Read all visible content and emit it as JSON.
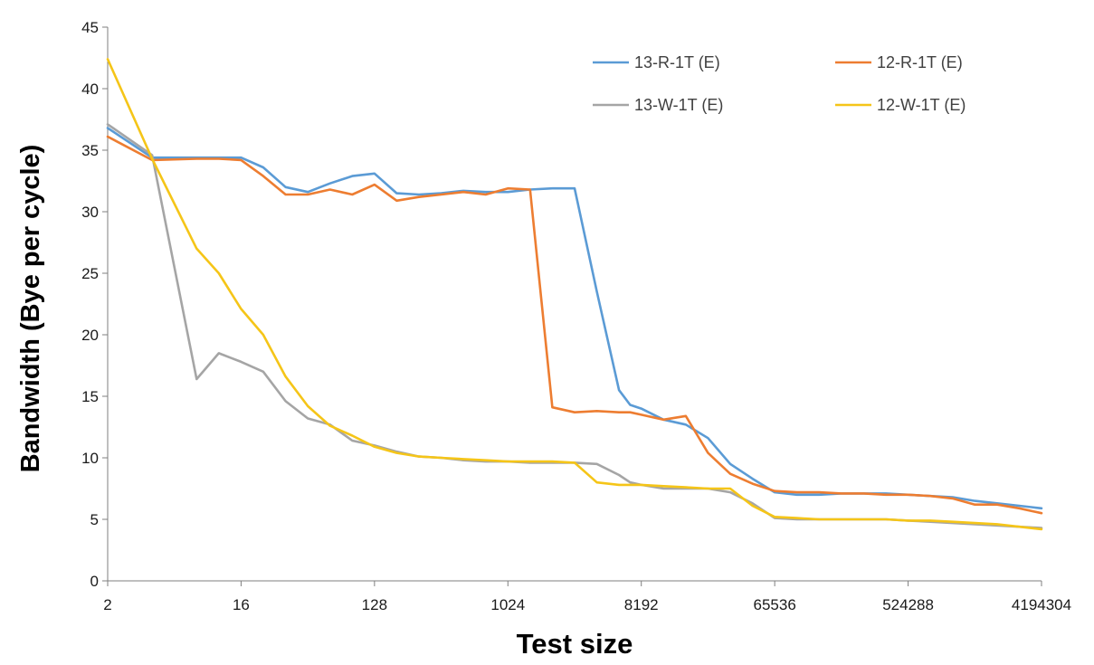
{
  "chart_data": {
    "type": "line",
    "title": "",
    "xlabel": "Test size",
    "ylabel": "Bandwidth (Bye per cycle)",
    "x_scale": "log2",
    "xlim": [
      2,
      4194304
    ],
    "ylim": [
      0,
      45
    ],
    "x_tick_labels": [
      "2",
      "16",
      "128",
      "1024",
      "8192",
      "65536",
      "524288",
      "4194304"
    ],
    "y_tick_labels": [
      "0",
      "5",
      "10",
      "15",
      "20",
      "25",
      "30",
      "35",
      "40",
      "45"
    ],
    "grid": false,
    "legend_position": "top-right",
    "x": [
      2,
      4,
      8,
      11.3,
      16,
      22.6,
      32,
      45.3,
      64,
      90.5,
      128,
      181,
      256,
      362,
      512,
      724,
      1024,
      1448,
      2048,
      2896,
      4096,
      5793,
      6889,
      8192,
      11585,
      16384,
      23170,
      32768,
      46341,
      65536,
      92682,
      131072,
      185364,
      262144,
      370728,
      524288,
      741455,
      1048576,
      1482910,
      2097152,
      2965821,
      4194304
    ],
    "series": [
      {
        "name": "13-R-1T (E)",
        "color": "#5b9bd5",
        "values": [
          36.8,
          34.4,
          34.4,
          34.4,
          34.4,
          33.6,
          32.0,
          31.6,
          32.3,
          32.9,
          33.1,
          31.5,
          31.4,
          31.5,
          31.7,
          31.6,
          31.6,
          31.8,
          31.9,
          31.9,
          23.5,
          15.5,
          14.3,
          14.0,
          13.1,
          12.7,
          11.6,
          9.5,
          8.3,
          7.2,
          7.0,
          7.0,
          7.1,
          7.1,
          7.1,
          7.0,
          6.9,
          6.8,
          6.5,
          6.3,
          6.1,
          5.9
        ]
      },
      {
        "name": "12-R-1T (E)",
        "color": "#ed7d31",
        "values": [
          36.1,
          34.2,
          34.3,
          34.3,
          34.2,
          32.9,
          31.4,
          31.4,
          31.8,
          31.4,
          32.2,
          30.9,
          31.2,
          31.4,
          31.6,
          31.4,
          31.9,
          31.8,
          14.1,
          13.7,
          13.8,
          13.7,
          13.7,
          13.5,
          13.1,
          13.4,
          10.4,
          8.7,
          7.9,
          7.3,
          7.2,
          7.2,
          7.1,
          7.1,
          7.0,
          7.0,
          6.9,
          6.7,
          6.2,
          6.2,
          5.9,
          5.5
        ]
      },
      {
        "name": "13-W-1T (E)",
        "color": "#a5a5a5",
        "values": [
          37.1,
          34.6,
          16.4,
          18.5,
          17.8,
          17.0,
          14.6,
          13.2,
          12.7,
          11.4,
          11.0,
          10.5,
          10.1,
          10.0,
          9.8,
          9.7,
          9.7,
          9.6,
          9.6,
          9.6,
          9.5,
          8.6,
          8.0,
          7.8,
          7.5,
          7.5,
          7.5,
          7.2,
          6.3,
          5.1,
          5.0,
          5.0,
          5.0,
          5.0,
          5.0,
          4.9,
          4.8,
          4.7,
          4.6,
          4.5,
          4.4,
          4.3
        ]
      },
      {
        "name": "12-W-1T (E)",
        "color": "#f5c518",
        "values": [
          42.4,
          34.3,
          27.0,
          25.0,
          22.1,
          20.0,
          16.6,
          14.2,
          12.6,
          11.8,
          10.9,
          10.4,
          10.1,
          10.0,
          9.9,
          9.8,
          9.7,
          9.7,
          9.7,
          9.6,
          8.0,
          7.8,
          7.8,
          7.8,
          7.7,
          7.6,
          7.5,
          7.5,
          6.1,
          5.2,
          5.1,
          5.0,
          5.0,
          5.0,
          5.0,
          4.9,
          4.9,
          4.8,
          4.7,
          4.6,
          4.4,
          4.2
        ]
      }
    ]
  }
}
